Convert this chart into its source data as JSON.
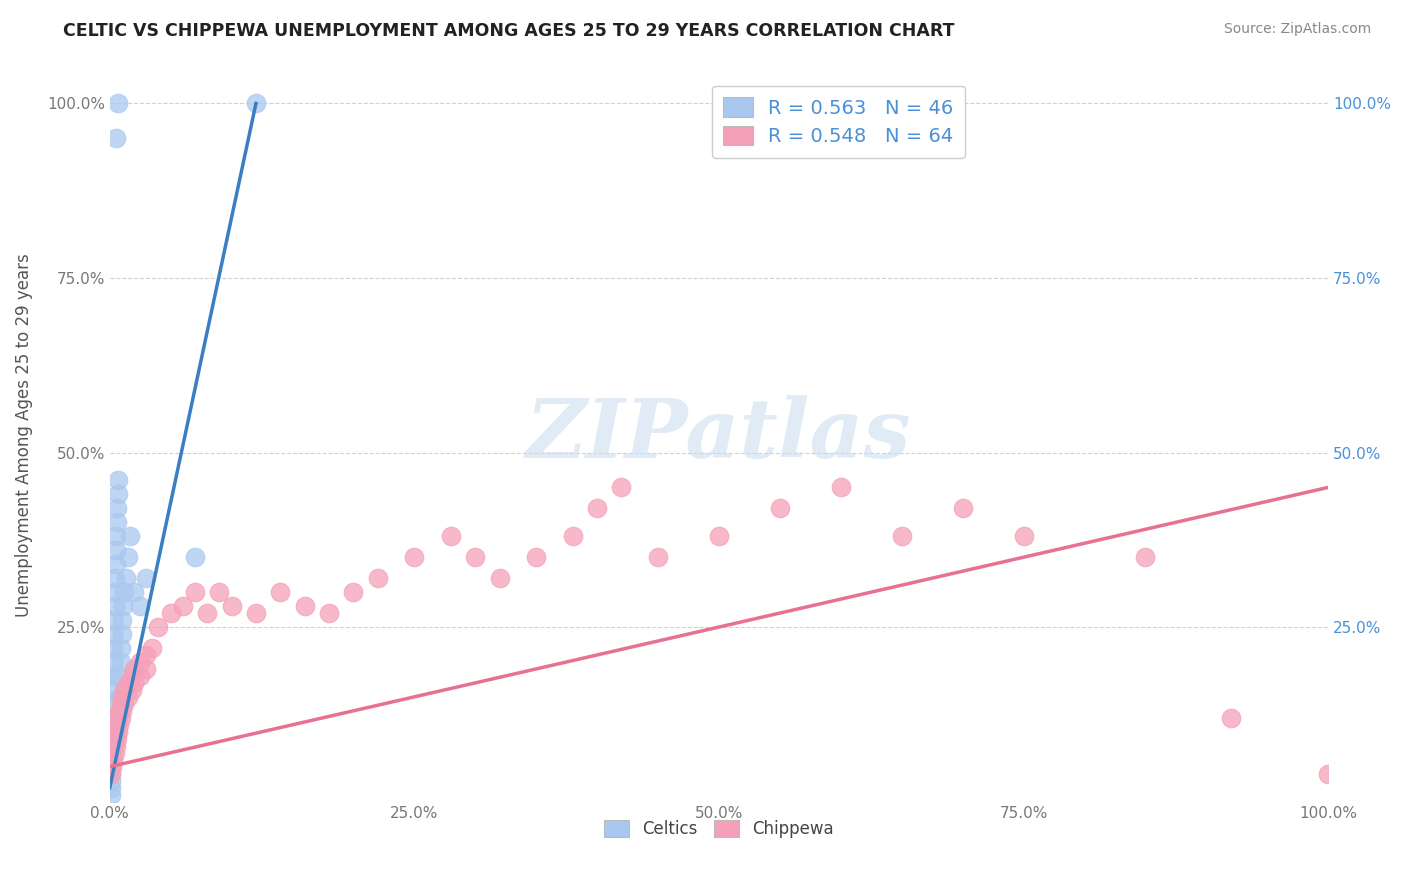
{
  "title": "CELTIC VS CHIPPEWA UNEMPLOYMENT AMONG AGES 25 TO 29 YEARS CORRELATION CHART",
  "source": "Source: ZipAtlas.com",
  "ylabel": "Unemployment Among Ages 25 to 29 years",
  "xlim": [
    0,
    1.0
  ],
  "ylim": [
    0,
    1.05
  ],
  "xticks": [
    0.0,
    0.25,
    0.5,
    0.75,
    1.0
  ],
  "xticklabels": [
    "0.0%",
    "25.0%",
    "50.0%",
    "75.0%",
    "100.0%"
  ],
  "yticks": [
    0.0,
    0.25,
    0.5,
    0.75,
    1.0
  ],
  "yticklabels": [
    "",
    "25.0%",
    "50.0%",
    "75.0%",
    "100.0%"
  ],
  "celtics_color": "#A8C8F0",
  "chippewa_color": "#F5A0B8",
  "celtics_line_color": "#3A7FC1",
  "chippewa_line_color": "#E87090",
  "legend_text_color": "#4A90D9",
  "celtics_R": 0.563,
  "celtics_N": 46,
  "chippewa_R": 0.548,
  "chippewa_N": 64,
  "watermark": "ZIPatlas",
  "celtics_x": [
    0.005,
    0.007,
    0.001,
    0.001,
    0.001,
    0.001,
    0.001,
    0.001,
    0.001,
    0.001,
    0.001,
    0.002,
    0.002,
    0.002,
    0.002,
    0.002,
    0.003,
    0.003,
    0.003,
    0.003,
    0.004,
    0.004,
    0.004,
    0.005,
    0.005,
    0.005,
    0.006,
    0.006,
    0.007,
    0.007,
    0.008,
    0.008,
    0.009,
    0.009,
    0.01,
    0.01,
    0.011,
    0.012,
    0.013,
    0.015,
    0.017,
    0.02,
    0.025,
    0.03,
    0.07,
    0.12
  ],
  "celtics_y": [
    0.95,
    1.0,
    0.01,
    0.02,
    0.03,
    0.04,
    0.05,
    0.06,
    0.07,
    0.08,
    0.09,
    0.1,
    0.12,
    0.14,
    0.16,
    0.18,
    0.2,
    0.22,
    0.24,
    0.26,
    0.28,
    0.3,
    0.32,
    0.34,
    0.36,
    0.38,
    0.4,
    0.42,
    0.44,
    0.46,
    0.15,
    0.18,
    0.2,
    0.22,
    0.24,
    0.26,
    0.28,
    0.3,
    0.32,
    0.35,
    0.38,
    0.3,
    0.28,
    0.32,
    0.35,
    1.0
  ],
  "chippewa_x": [
    0.001,
    0.001,
    0.002,
    0.002,
    0.003,
    0.003,
    0.004,
    0.004,
    0.005,
    0.005,
    0.006,
    0.006,
    0.007,
    0.007,
    0.008,
    0.008,
    0.009,
    0.009,
    0.01,
    0.01,
    0.012,
    0.012,
    0.015,
    0.015,
    0.018,
    0.018,
    0.02,
    0.02,
    0.025,
    0.025,
    0.03,
    0.03,
    0.035,
    0.04,
    0.05,
    0.06,
    0.07,
    0.08,
    0.09,
    0.1,
    0.12,
    0.14,
    0.16,
    0.18,
    0.2,
    0.22,
    0.25,
    0.28,
    0.3,
    0.32,
    0.35,
    0.38,
    0.4,
    0.42,
    0.45,
    0.5,
    0.55,
    0.6,
    0.65,
    0.7,
    0.75,
    0.85,
    0.92,
    1.0
  ],
  "chippewa_y": [
    0.04,
    0.06,
    0.05,
    0.07,
    0.06,
    0.08,
    0.07,
    0.09,
    0.08,
    0.1,
    0.09,
    0.11,
    0.1,
    0.12,
    0.11,
    0.13,
    0.12,
    0.14,
    0.13,
    0.15,
    0.14,
    0.16,
    0.15,
    0.17,
    0.16,
    0.18,
    0.17,
    0.19,
    0.18,
    0.2,
    0.19,
    0.21,
    0.22,
    0.25,
    0.27,
    0.28,
    0.3,
    0.27,
    0.3,
    0.28,
    0.27,
    0.3,
    0.28,
    0.27,
    0.3,
    0.32,
    0.35,
    0.38,
    0.35,
    0.32,
    0.35,
    0.38,
    0.42,
    0.45,
    0.35,
    0.38,
    0.42,
    0.45,
    0.38,
    0.42,
    0.38,
    0.35,
    0.12,
    0.04
  ],
  "celtics_trend_x": [
    0.0,
    0.12
  ],
  "celtics_trend_y": [
    0.02,
    1.0
  ],
  "chippewa_trend_x": [
    0.0,
    1.0
  ],
  "chippewa_trend_y": [
    0.05,
    0.45
  ]
}
